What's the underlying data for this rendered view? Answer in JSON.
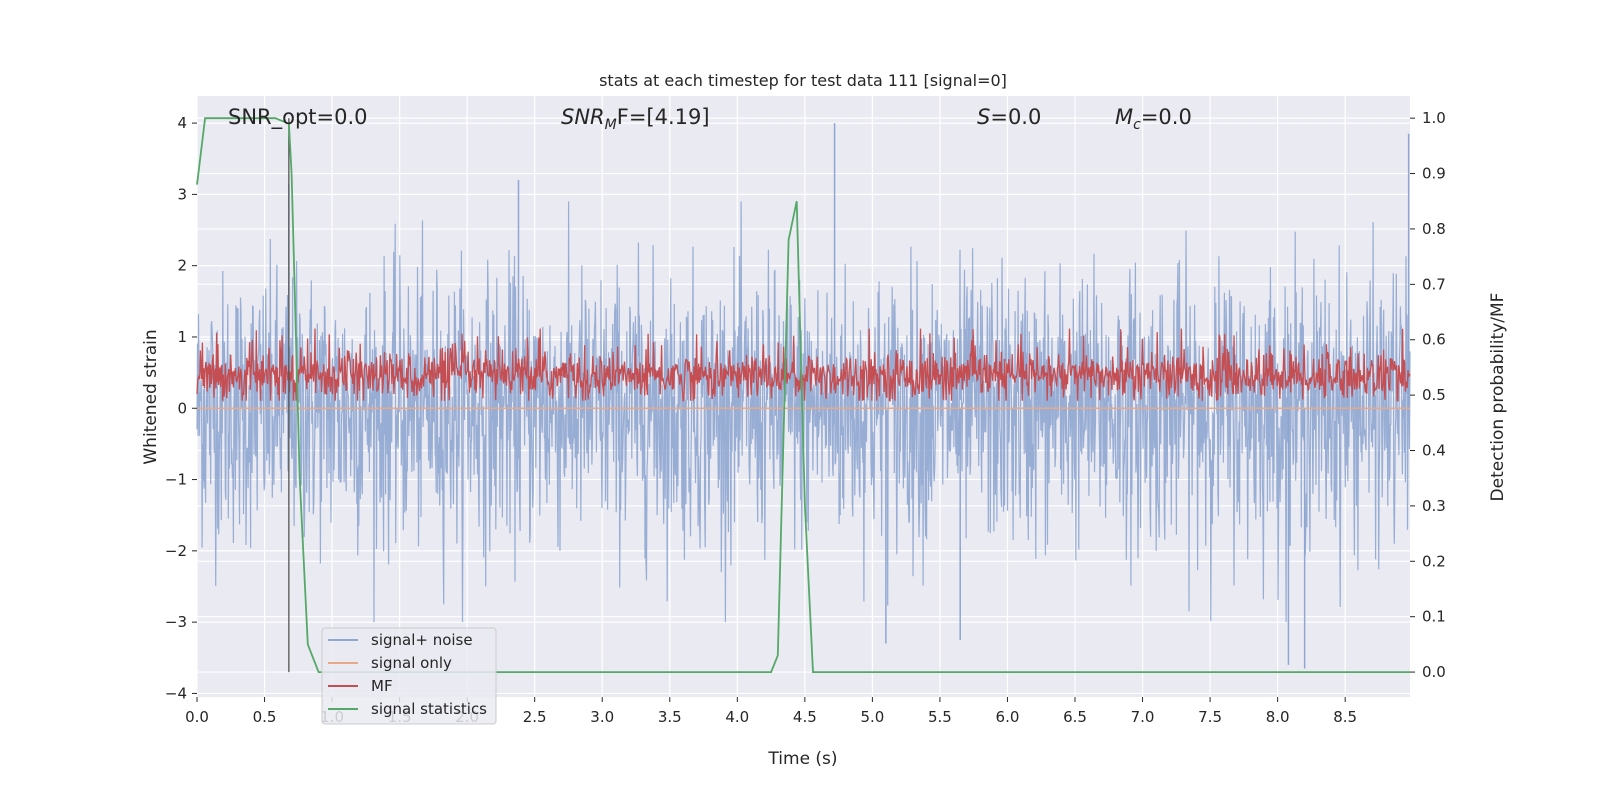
{
  "chart_data": {
    "type": "line",
    "title": "stats at each timestep for test data 111 [signal=0]",
    "xlabel": "Time (s)",
    "ylabel_left": "Whitened strain",
    "ylabel_right": "Detection probability/MF",
    "xlim": [
      0,
      8.98
    ],
    "ylim_left": [
      -4.05,
      4.38
    ],
    "ylim_right": [
      -0.045,
      1.04
    ],
    "x_ticks": [
      0.0,
      0.5,
      1.0,
      1.5,
      2.0,
      2.5,
      3.0,
      3.5,
      4.0,
      4.5,
      5.0,
      5.5,
      6.0,
      6.5,
      7.0,
      7.5,
      8.0,
      8.5
    ],
    "x_tick_labels": [
      "0.0",
      "0.5",
      "1.0",
      "1.5",
      "2.0",
      "2.5",
      "3.0",
      "3.5",
      "4.0",
      "4.5",
      "5.0",
      "5.5",
      "6.0",
      "6.5",
      "7.0",
      "7.5",
      "8.0",
      "8.5"
    ],
    "y_left_ticks": [
      4,
      3,
      2,
      1,
      0,
      -1,
      -2,
      -3,
      -4
    ],
    "y_left_tick_labels": [
      "4",
      "3",
      "2",
      "1",
      "0",
      "−1",
      "−2",
      "−3",
      "−4"
    ],
    "y_right_ticks": [
      1.0,
      0.9,
      0.8,
      0.7,
      0.6,
      0.5,
      0.4,
      0.3,
      0.2,
      0.1,
      0.0
    ],
    "y_right_tick_labels": [
      "1.0",
      "0.9",
      "0.8",
      "0.7",
      "0.6",
      "0.5",
      "0.4",
      "0.3",
      "0.2",
      "0.1",
      "0.0"
    ],
    "grid": true,
    "legend": {
      "placement": "lower-left",
      "entries": [
        {
          "label": "signal+ noise",
          "color": "#8fa6d0"
        },
        {
          "label": "signal only",
          "color": "#e8a989"
        },
        {
          "label": "MF",
          "color": "#c44e52"
        },
        {
          "label": "signal statistics",
          "color": "#55a868"
        }
      ]
    },
    "annotations": {
      "snr_opt": "SNR_opt=0.0",
      "snr_mf_prefix": "SNR",
      "snr_mf_sub": "M",
      "snr_mf_suffix": "F=[4.19]",
      "s_name": "S",
      "s_value": "=0.0",
      "mc_name": "M",
      "mc_sub": "c",
      "mc_value": "=0.0"
    },
    "vertical_marker_x": 0.68,
    "series": [
      {
        "name": "signal+ noise",
        "axis": "left",
        "color": "#8fa6d0",
        "description_of_values": "whitened noise, roughly gaussian, extremes mostly within ±3, samples across full time range",
        "notable_peaks": [
          {
            "x": 0.68,
            "y": 3.15
          },
          {
            "x": 2.38,
            "y": 3.2
          },
          {
            "x": 4.72,
            "y": 4.0
          },
          {
            "x": 8.97,
            "y": 3.85
          },
          {
            "x": 8.08,
            "y": -3.6
          },
          {
            "x": 8.2,
            "y": -3.65
          },
          {
            "x": 5.1,
            "y": -3.3
          },
          {
            "x": 5.65,
            "y": -3.25
          }
        ]
      },
      {
        "name": "signal only",
        "axis": "left",
        "color": "#e8a989",
        "x": [
          0,
          8.98
        ],
        "y": [
          0,
          0
        ]
      },
      {
        "name": "MF",
        "axis": "right",
        "color": "#c44e52",
        "description_of_values": "matched-filter output fluctuating between about 0.49 and 0.62"
      },
      {
        "name": "signal statistics",
        "axis": "right",
        "color": "#55a868",
        "x": [
          0.0,
          0.06,
          0.52,
          0.58,
          0.68,
          0.7,
          0.76,
          0.82,
          0.9,
          1.0,
          4.25,
          4.3,
          4.38,
          4.44,
          4.5,
          4.56,
          4.6,
          8.98
        ],
        "y": [
          0.88,
          1.0,
          1.0,
          1.0,
          0.99,
          0.9,
          0.35,
          0.05,
          0.0,
          0.0,
          0.0,
          0.03,
          0.78,
          0.85,
          0.3,
          0.0,
          0.0,
          0.0
        ]
      }
    ],
    "colors": {
      "background": "#eaeaf2",
      "grid": "#ffffff",
      "marker_line": "#555555"
    }
  }
}
